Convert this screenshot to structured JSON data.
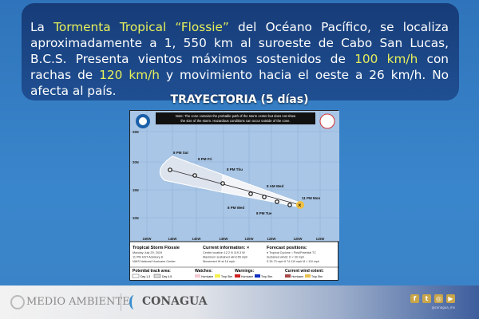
{
  "info": {
    "t1": "La ",
    "t2": "Tormenta Tropical “Flossie”",
    "t3": " del Océano Pacífico, se localiza aproximadamente a 1, 550 km al suroeste de Cabo San Lucas, B.C.S. Presenta vientos máximos sostenidos de ",
    "t4": "100 km/h",
    "t5": " con rachas de ",
    "t6": "120 km/h",
    "t7": " y movimiento hacia el oeste a 26 km/h. No afecta al país."
  },
  "title": "TRAYECTORIA (5 días)",
  "map": {
    "note": [
      "Note: The cone contains the probable path of the storm center but does not show",
      "the size of the storm. Hazardous conditions can occur outside of the cone."
    ],
    "lat_labels": [
      "25N",
      "20N",
      "15N",
      "10N"
    ],
    "lon_labels": [
      "150W",
      "145W",
      "140W",
      "135W",
      "130W",
      "125W",
      "120W",
      "115W"
    ],
    "positions": [
      "8 PM Sat",
      "8 PM Fri",
      "8 PM Thu",
      "8 AM Wed",
      "8 PM Wed",
      "8 PM Tue",
      "11 PM Mon"
    ],
    "storm_name": "Tropical Storm Flossie",
    "storm_date": "Monday July 29, 2019",
    "advisory": "11 PM HST Advisory 8",
    "center": "NWS National Hurricane Center",
    "ci_title": "Current information: ×",
    "ci": [
      "Center location 12.2 N 119.3 W",
      "Maximum sustained wind 65 mph",
      "Movement W at 16 mph"
    ],
    "fp_title": "Forecast positions:",
    "fp": [
      "● Tropical Cyclone  ○ Post/Potential TC",
      "Sustained winds:     D < 39 mph",
      "S 39-73 mph  H 74-110 mph  M > 110 mph"
    ],
    "track_title": "Potential track area:",
    "day13": "Day 1-3",
    "day45": "Day 4-5",
    "watches": "Watches:",
    "warnings": "Warnings:",
    "wind_extent": "Current wind extent:",
    "hurricane": "Hurricane",
    "tropstm": "Trop Stm",
    "colors": {
      "ocean": "#a9c6e6",
      "cone": "#ffffff",
      "current": "#f0c040"
    }
  },
  "footer": {
    "medio": "MEDIO AMBIENTE",
    "conagua": "CONAGUA",
    "handle": "@conagua_mx"
  },
  "social": [
    "f",
    "t",
    "◎",
    "▶"
  ]
}
